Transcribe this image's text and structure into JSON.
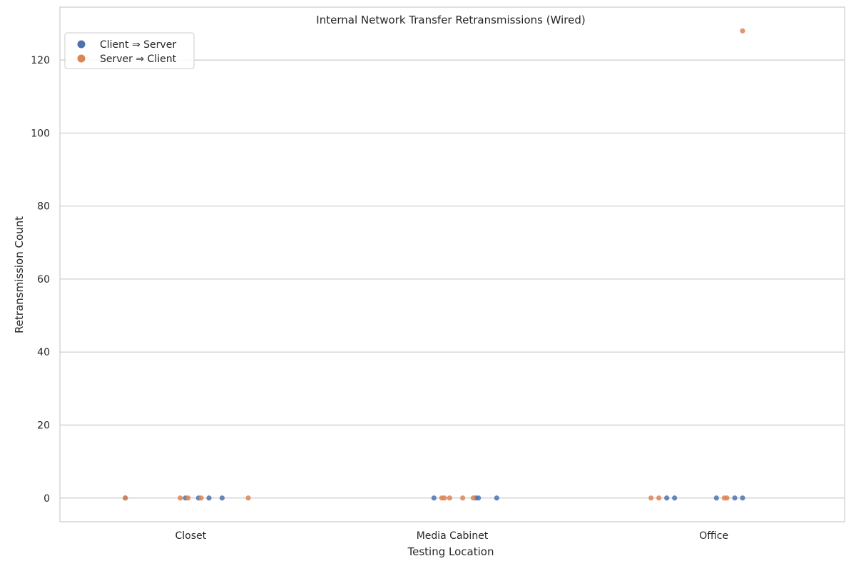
{
  "chart_data": {
    "type": "scatter",
    "title": "Internal Network Transfer Retransmissions (Wired)",
    "xlabel": "Testing Location",
    "ylabel": "Retransmission Count",
    "categories": [
      "Closet",
      "Media Cabinet",
      "Office"
    ],
    "ylim": [
      -6.5,
      134.5
    ],
    "yticks": [
      0,
      20,
      40,
      60,
      80,
      100,
      120
    ],
    "grid": true,
    "legend_position": "top-left",
    "series": [
      {
        "name": "Client ⇒ Server",
        "color": "#4c72b0",
        "points": [
          {
            "category": "Closet",
            "jitter": -0.25,
            "value": 0
          },
          {
            "category": "Closet",
            "jitter": -0.02,
            "value": 0
          },
          {
            "category": "Closet",
            "jitter": 0.03,
            "value": 0
          },
          {
            "category": "Closet",
            "jitter": 0.07,
            "value": 0
          },
          {
            "category": "Closet",
            "jitter": 0.12,
            "value": 0
          },
          {
            "category": "Media Cabinet",
            "jitter": -0.07,
            "value": 0
          },
          {
            "category": "Media Cabinet",
            "jitter": 0.09,
            "value": 0
          },
          {
            "category": "Media Cabinet",
            "jitter": 0.1,
            "value": 0
          },
          {
            "category": "Media Cabinet",
            "jitter": 0.17,
            "value": 0
          },
          {
            "category": "Office",
            "jitter": -0.18,
            "value": 0
          },
          {
            "category": "Office",
            "jitter": -0.15,
            "value": 0
          },
          {
            "category": "Office",
            "jitter": 0.01,
            "value": 0
          },
          {
            "category": "Office",
            "jitter": 0.08,
            "value": 0
          },
          {
            "category": "Office",
            "jitter": 0.11,
            "value": 0
          }
        ]
      },
      {
        "name": "Server ⇒ Client",
        "color": "#dd8452",
        "points": [
          {
            "category": "Closet",
            "jitter": -0.25,
            "value": 0
          },
          {
            "category": "Closet",
            "jitter": -0.04,
            "value": 0
          },
          {
            "category": "Closet",
            "jitter": -0.01,
            "value": 0
          },
          {
            "category": "Closet",
            "jitter": 0.04,
            "value": 0
          },
          {
            "category": "Closet",
            "jitter": 0.22,
            "value": 0
          },
          {
            "category": "Media Cabinet",
            "jitter": -0.04,
            "value": 0
          },
          {
            "category": "Media Cabinet",
            "jitter": -0.03,
            "value": 0
          },
          {
            "category": "Media Cabinet",
            "jitter": -0.01,
            "value": 0
          },
          {
            "category": "Media Cabinet",
            "jitter": 0.04,
            "value": 0
          },
          {
            "category": "Media Cabinet",
            "jitter": 0.08,
            "value": 0
          },
          {
            "category": "Office",
            "jitter": -0.24,
            "value": 0
          },
          {
            "category": "Office",
            "jitter": -0.21,
            "value": 0
          },
          {
            "category": "Office",
            "jitter": 0.04,
            "value": 0
          },
          {
            "category": "Office",
            "jitter": 0.05,
            "value": 0
          },
          {
            "category": "Office",
            "jitter": 0.11,
            "value": 128
          }
        ]
      }
    ]
  }
}
